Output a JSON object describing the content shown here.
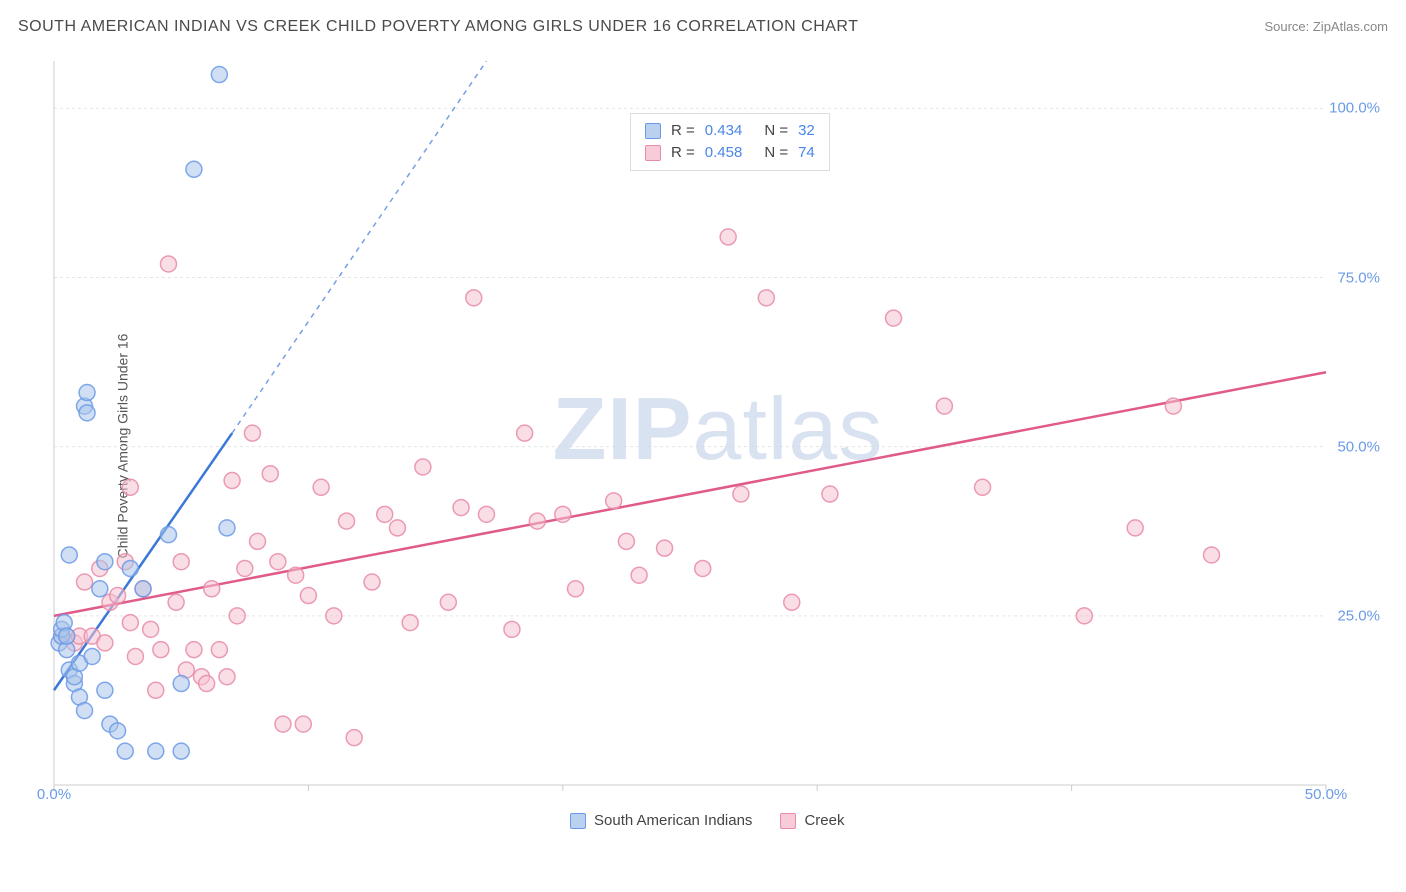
{
  "title": "SOUTH AMERICAN INDIAN VS CREEK CHILD POVERTY AMONG GIRLS UNDER 16 CORRELATION CHART",
  "source": "Source: ZipAtlas.com",
  "y_axis_label": "Child Poverty Among Girls Under 16",
  "watermark_prefix": "ZIP",
  "watermark_suffix": "atlas",
  "chart": {
    "type": "scatter",
    "xlim": [
      0,
      50
    ],
    "ylim": [
      0,
      107
    ],
    "x_ticks": [
      0,
      10,
      20,
      30,
      40,
      50
    ],
    "x_tick_labels": [
      "0.0%",
      "",
      "",
      "",
      "",
      "50.0%"
    ],
    "y_ticks": [
      25,
      50,
      75,
      100
    ],
    "y_tick_labels": [
      "25.0%",
      "50.0%",
      "75.0%",
      "100.0%"
    ],
    "grid_color": "#e5e5e5",
    "axis_color": "#cccccc",
    "background_color": "#ffffff",
    "marker_radius": 8,
    "marker_opacity": 0.55,
    "series": [
      {
        "name": "South American Indians",
        "color_fill": "#a9c5ea",
        "color_stroke": "#6b9ae8",
        "swatch_fill": "#b9d0ee",
        "swatch_stroke": "#6b9ae8",
        "r": "0.434",
        "n": "32",
        "regression": {
          "x1": 0,
          "y1": 14,
          "x2_solid": 7,
          "y2_solid": 52,
          "x2_dash": 17,
          "y2_dash": 107,
          "color": "#3b78d8"
        },
        "points": [
          [
            0.2,
            21
          ],
          [
            0.3,
            22
          ],
          [
            0.3,
            23
          ],
          [
            0.4,
            24
          ],
          [
            0.5,
            20
          ],
          [
            0.5,
            22
          ],
          [
            0.6,
            17
          ],
          [
            0.6,
            34
          ],
          [
            0.8,
            15
          ],
          [
            0.8,
            16
          ],
          [
            1.0,
            13
          ],
          [
            1.0,
            18
          ],
          [
            1.2,
            11
          ],
          [
            1.2,
            56
          ],
          [
            1.3,
            58
          ],
          [
            1.3,
            55
          ],
          [
            1.5,
            19
          ],
          [
            1.8,
            29
          ],
          [
            2.0,
            33
          ],
          [
            2.0,
            14
          ],
          [
            2.2,
            9
          ],
          [
            2.5,
            8
          ],
          [
            2.8,
            5
          ],
          [
            3.0,
            32
          ],
          [
            3.5,
            29
          ],
          [
            4.0,
            5
          ],
          [
            4.5,
            37
          ],
          [
            5.0,
            15
          ],
          [
            5.5,
            91
          ],
          [
            6.5,
            105
          ],
          [
            6.8,
            38
          ],
          [
            5.0,
            5
          ]
        ]
      },
      {
        "name": "Creek",
        "color_fill": "#f6c3d1",
        "color_stroke": "#e88ba8",
        "swatch_fill": "#f7ccd8",
        "swatch_stroke": "#e88ba8",
        "r": "0.458",
        "n": "74",
        "regression": {
          "x1": 0,
          "y1": 25,
          "x2_solid": 50,
          "y2_solid": 61,
          "color": "#e05a8a"
        },
        "points": [
          [
            0.3,
            22
          ],
          [
            0.5,
            22
          ],
          [
            0.8,
            21
          ],
          [
            1.0,
            22
          ],
          [
            1.2,
            30
          ],
          [
            1.5,
            22
          ],
          [
            1.8,
            32
          ],
          [
            2.0,
            21
          ],
          [
            2.2,
            27
          ],
          [
            2.5,
            28
          ],
          [
            2.8,
            33
          ],
          [
            3.0,
            44
          ],
          [
            3.0,
            24
          ],
          [
            3.2,
            19
          ],
          [
            3.5,
            29
          ],
          [
            3.8,
            23
          ],
          [
            4.0,
            14
          ],
          [
            4.2,
            20
          ],
          [
            4.5,
            77
          ],
          [
            4.8,
            27
          ],
          [
            5.0,
            33
          ],
          [
            5.2,
            17
          ],
          [
            5.5,
            20
          ],
          [
            5.8,
            16
          ],
          [
            6.0,
            15
          ],
          [
            6.2,
            29
          ],
          [
            6.5,
            20
          ],
          [
            6.8,
            16
          ],
          [
            7.0,
            45
          ],
          [
            7.2,
            25
          ],
          [
            7.5,
            32
          ],
          [
            7.8,
            52
          ],
          [
            8.0,
            36
          ],
          [
            8.5,
            46
          ],
          [
            8.8,
            33
          ],
          [
            9.0,
            9
          ],
          [
            9.5,
            31
          ],
          [
            9.8,
            9
          ],
          [
            10.0,
            28
          ],
          [
            10.5,
            44
          ],
          [
            11.0,
            25
          ],
          [
            11.5,
            39
          ],
          [
            11.8,
            7
          ],
          [
            12.5,
            30
          ],
          [
            13.0,
            40
          ],
          [
            13.5,
            38
          ],
          [
            14.0,
            24
          ],
          [
            14.5,
            47
          ],
          [
            15.5,
            27
          ],
          [
            16.0,
            41
          ],
          [
            16.5,
            72
          ],
          [
            17.0,
            40
          ],
          [
            18.0,
            23
          ],
          [
            18.5,
            52
          ],
          [
            19.0,
            39
          ],
          [
            20.0,
            40
          ],
          [
            20.5,
            29
          ],
          [
            22.0,
            42
          ],
          [
            22.5,
            36
          ],
          [
            23.0,
            31
          ],
          [
            24.0,
            35
          ],
          [
            25.5,
            32
          ],
          [
            26.5,
            81
          ],
          [
            27.0,
            43
          ],
          [
            28.0,
            72
          ],
          [
            29.0,
            27
          ],
          [
            30.5,
            43
          ],
          [
            33.0,
            69
          ],
          [
            35.0,
            56
          ],
          [
            36.5,
            44
          ],
          [
            40.5,
            25
          ],
          [
            42.5,
            38
          ],
          [
            44.0,
            56
          ],
          [
            45.5,
            34
          ]
        ]
      }
    ],
    "legend_bottom": [
      {
        "label": "South American Indians",
        "series": 0
      },
      {
        "label": "Creek",
        "series": 1
      }
    ]
  }
}
